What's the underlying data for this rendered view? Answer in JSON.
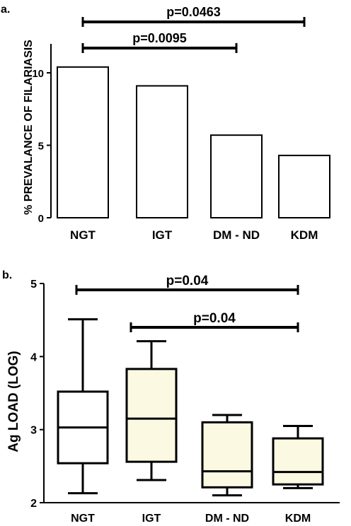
{
  "chart_data": [
    {
      "panel_label": "a.",
      "type": "bar",
      "title": "",
      "xlabel": "",
      "ylabel": "% PREVALANCE OF FILARIASIS",
      "ylim": [
        0,
        12
      ],
      "yticks": [
        "0",
        "5",
        "10"
      ],
      "categories": [
        "NGT",
        "IGT",
        "DM - ND",
        "KDM"
      ],
      "values": [
        10.4,
        9.1,
        5.7,
        4.3
      ],
      "bar_fill": "#ffffff",
      "annotations": [
        {
          "text": "p=0.0095",
          "from": "NGT",
          "to": "DM - ND",
          "level": 1
        },
        {
          "text": "p=0.0463",
          "from": "NGT",
          "to": "KDM",
          "level": 2
        }
      ]
    },
    {
      "panel_label": "b.",
      "type": "box",
      "title": "",
      "xlabel": "",
      "ylabel": "Ag LOAD (LOG)",
      "ylim": [
        2,
        5
      ],
      "yticks": [
        "2",
        "3",
        "4",
        "5"
      ],
      "categories": [
        "NGT",
        "IGT",
        "DM - ND",
        "KDM"
      ],
      "boxes": [
        {
          "category": "NGT",
          "min": 2.13,
          "q1": 2.54,
          "median": 3.03,
          "q3": 3.52,
          "max": 4.51,
          "fill": "#ffffff"
        },
        {
          "category": "IGT",
          "min": 2.31,
          "q1": 2.56,
          "median": 3.15,
          "q3": 3.83,
          "max": 4.21,
          "fill": "#fbf9e2"
        },
        {
          "category": "DM - ND",
          "min": 2.1,
          "q1": 2.21,
          "median": 2.43,
          "q3": 3.1,
          "max": 3.2,
          "fill": "#fbf9e2"
        },
        {
          "category": "KDM",
          "min": 2.2,
          "q1": 2.25,
          "median": 2.42,
          "q3": 2.88,
          "max": 3.05,
          "fill": "#fbf9e2"
        }
      ],
      "annotations": [
        {
          "text": "p=0.04",
          "from": "NGT",
          "to": "KDM",
          "level": 2
        },
        {
          "text": "p=0.04",
          "from": "IGT",
          "to": "KDM",
          "level": 1
        }
      ]
    }
  ]
}
